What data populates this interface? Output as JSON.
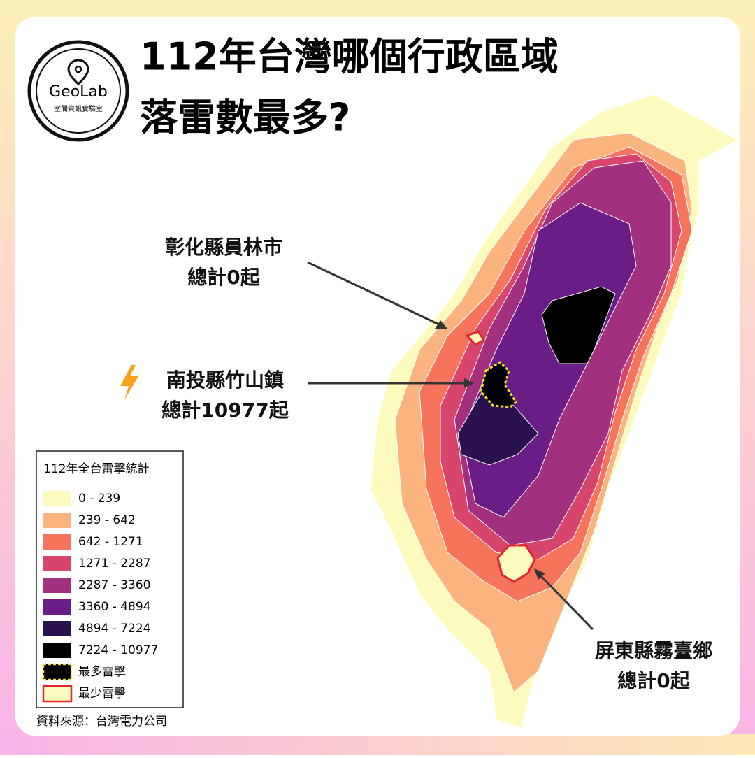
{
  "logo": {
    "name": "GeoLab",
    "subtitle": "空間資訊實驗室"
  },
  "title": [
    "112年台灣哪個行政區域",
    "落雷數最多?"
  ],
  "annotations": [
    {
      "place": "彰化縣員林市",
      "total": "總計0起"
    },
    {
      "place": "南投縣竹山鎮",
      "total": "總計10977起"
    },
    {
      "place": "屏東縣霧臺鄉",
      "total": "總計0起"
    }
  ],
  "legend": {
    "title": "112年全台雷擊統計",
    "items": [
      {
        "label": "0 - 239",
        "color": "#fcfbbd"
      },
      {
        "label": "239 - 642",
        "color": "#fcb47f"
      },
      {
        "label": "642 - 1271",
        "color": "#f6735c"
      },
      {
        "label": "1271 - 2287",
        "color": "#d8456c"
      },
      {
        "label": "2287 - 3360",
        "color": "#a3307e"
      },
      {
        "label": "3360 - 4894",
        "color": "#6a1d87"
      },
      {
        "label": "4894 - 7224",
        "color": "#2a1150"
      },
      {
        "label": "7224 - 10977",
        "color": "#000000"
      },
      {
        "label": "最多雷擊",
        "color": "#000000",
        "border": "#f5e11a"
      },
      {
        "label": "最少雷擊",
        "color": "#fcfbbd",
        "border": "#e3262b"
      }
    ]
  },
  "source": "資料來源：台灣電力公司"
}
